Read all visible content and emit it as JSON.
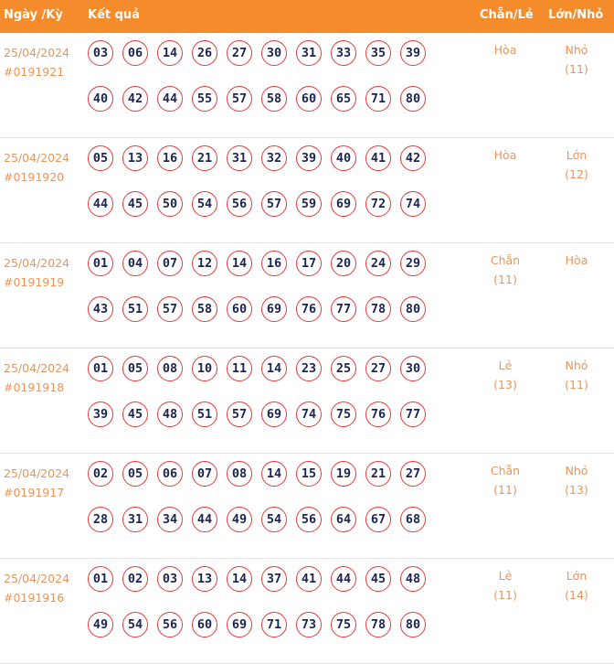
{
  "header": {
    "date": "Ngày /Kỳ",
    "result": "Kết quả",
    "even_odd": "Chẵn/Lẻ",
    "big_small": "Lớn/Nhỏ"
  },
  "rows": [
    {
      "date": "25/04/2024",
      "draw": "#0191921",
      "numbers": [
        "03",
        "06",
        "14",
        "26",
        "27",
        "30",
        "31",
        "33",
        "35",
        "39",
        "40",
        "42",
        "44",
        "55",
        "57",
        "58",
        "60",
        "65",
        "71",
        "80"
      ],
      "even_odd": {
        "label": "Hòa"
      },
      "big_small": {
        "label": "Nhỏ",
        "count": "(11)"
      }
    },
    {
      "date": "25/04/2024",
      "draw": "#0191920",
      "numbers": [
        "05",
        "13",
        "16",
        "21",
        "31",
        "32",
        "39",
        "40",
        "41",
        "42",
        "44",
        "45",
        "50",
        "54",
        "56",
        "57",
        "59",
        "69",
        "72",
        "74"
      ],
      "even_odd": {
        "label": "Hòa"
      },
      "big_small": {
        "label": "Lớn",
        "count": "(12)"
      }
    },
    {
      "date": "25/04/2024",
      "draw": "#0191919",
      "numbers": [
        "01",
        "04",
        "07",
        "12",
        "14",
        "16",
        "17",
        "20",
        "24",
        "29",
        "43",
        "51",
        "57",
        "58",
        "60",
        "69",
        "76",
        "77",
        "78",
        "80"
      ],
      "even_odd": {
        "label": "Chẵn",
        "count": "(11)"
      },
      "big_small": {
        "label": "Hòa"
      }
    },
    {
      "date": "25/04/2024",
      "draw": "#0191918",
      "numbers": [
        "01",
        "05",
        "08",
        "10",
        "11",
        "14",
        "23",
        "25",
        "27",
        "30",
        "39",
        "45",
        "48",
        "51",
        "57",
        "69",
        "74",
        "75",
        "76",
        "77"
      ],
      "even_odd": {
        "label": "Lẻ",
        "count": "(13)"
      },
      "big_small": {
        "label": "Nhỏ",
        "count": "(11)"
      }
    },
    {
      "date": "25/04/2024",
      "draw": "#0191917",
      "numbers": [
        "02",
        "05",
        "06",
        "07",
        "08",
        "14",
        "15",
        "19",
        "21",
        "27",
        "28",
        "31",
        "34",
        "44",
        "49",
        "54",
        "56",
        "64",
        "67",
        "68"
      ],
      "even_odd": {
        "label": "Chẵn",
        "count": "(11)"
      },
      "big_small": {
        "label": "Nhỏ",
        "count": "(13)"
      }
    },
    {
      "date": "25/04/2024",
      "draw": "#0191916",
      "numbers": [
        "01",
        "02",
        "03",
        "13",
        "14",
        "37",
        "41",
        "44",
        "45",
        "48",
        "49",
        "54",
        "56",
        "60",
        "69",
        "71",
        "73",
        "75",
        "78",
        "80"
      ],
      "even_odd": {
        "label": "Lẻ",
        "count": "(11)"
      },
      "big_small": {
        "label": "Lớn",
        "count": "(14)"
      }
    }
  ]
}
